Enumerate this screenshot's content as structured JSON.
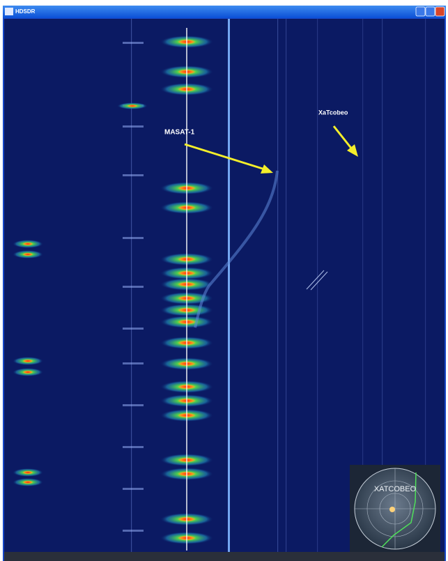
{
  "window": {
    "title": "HDSDR"
  },
  "annotations": [
    {
      "label": "MASAT-1"
    },
    {
      "label": "XaTcobeo"
    }
  ],
  "inset": {
    "title": "XATCOBEO"
  }
}
